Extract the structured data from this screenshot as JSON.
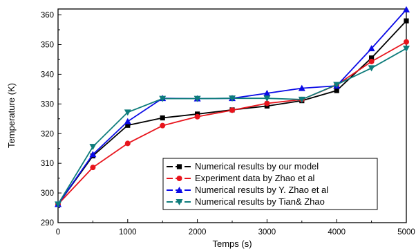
{
  "chart_data": {
    "type": "line",
    "title": "",
    "xlabel": "Temps (s)",
    "ylabel": "Temperature (K)",
    "xlim": [
      0,
      5000
    ],
    "ylim": [
      290,
      362
    ],
    "x_ticks": [
      0,
      1000,
      2000,
      3000,
      4000,
      5000
    ],
    "x_tick_labels": [
      "0",
      "1000",
      "2000",
      "3000",
      "4000",
      "5000"
    ],
    "y_ticks": [
      290,
      300,
      310,
      320,
      330,
      340,
      350,
      360
    ],
    "y_tick_labels": [
      "290",
      "300",
      "310",
      "320",
      "330",
      "340",
      "350",
      "360"
    ],
    "grid": false,
    "legend_position": "lower-right",
    "x": [
      0,
      500,
      1000,
      1500,
      2000,
      2500,
      3000,
      3500,
      4000,
      4500,
      5000
    ],
    "series": [
      {
        "name": "Numerical results by our model",
        "color": "#000000",
        "marker": "square",
        "values": [
          296.2,
          312.5,
          322.8,
          325.3,
          326.6,
          328.0,
          329.3,
          331.1,
          334.5,
          345.5,
          358.0
        ]
      },
      {
        "name": "Experiment data by Zhao et al",
        "color": "#e8141c",
        "marker": "circle",
        "values": [
          296.2,
          308.6,
          316.7,
          322.7,
          325.7,
          327.9,
          330.2,
          331.5,
          336.4,
          344.3,
          350.9
        ]
      },
      {
        "name": "Numerical results by Y. Zhao et al",
        "color": "#0a0ae6",
        "marker": "triangle-up",
        "values": [
          296.2,
          313.0,
          324.1,
          331.9,
          331.8,
          331.9,
          333.6,
          335.3,
          336.1,
          348.7,
          361.8
        ]
      },
      {
        "name": "Numerical results by Tian& Zhao",
        "color": "#0e7c7b",
        "marker": "triangle-down",
        "values": [
          296.2,
          315.6,
          327.2,
          331.8,
          331.8,
          331.9,
          331.9,
          331.5,
          336.5,
          342.1,
          348.7
        ]
      }
    ]
  }
}
